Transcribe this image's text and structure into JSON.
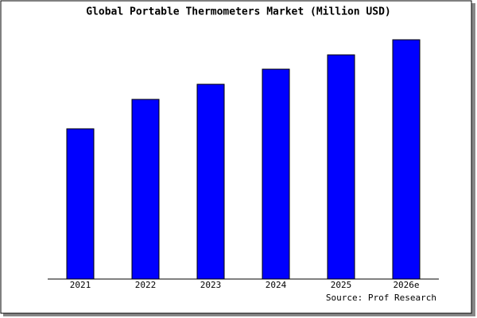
{
  "chart_data": {
    "type": "bar",
    "title": "Global Portable Thermometers Market (Million USD)",
    "categories": [
      "2021",
      "2022",
      "2023",
      "2024",
      "2025",
      "2026e"
    ],
    "values": [
      189,
      226,
      245,
      264,
      282,
      301
    ],
    "color": "#0000ff",
    "ylim": [
      0,
      303
    ],
    "source": "Source: Prof Research"
  }
}
